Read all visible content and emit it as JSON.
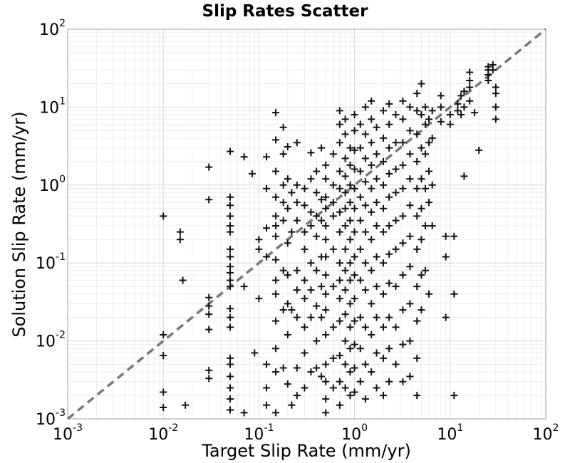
{
  "chart_data": {
    "type": "scatter",
    "title": "Slip Rates Scatter",
    "xlabel": "Target Slip Rate (mm/yr)",
    "ylabel": "Solution Slip Rate (mm/yr)",
    "xscale": "log",
    "yscale": "log",
    "xlim": [
      0.001,
      100
    ],
    "ylim": [
      0.001,
      100
    ],
    "grid": true,
    "marker": "plus",
    "marker_color": "#111111",
    "reference_line": {
      "type": "y=x",
      "style": "dashed",
      "color": "#777777"
    },
    "tick_labels": {
      "base": "10",
      "exponents": [
        "-3",
        "-2",
        "-1",
        "0",
        "1",
        "2"
      ]
    },
    "points": [
      [
        0.01,
        0.4
      ],
      [
        0.01,
        0.012
      ],
      [
        0.01,
        0.0065
      ],
      [
        0.01,
        0.0022
      ],
      [
        0.01,
        0.0014
      ],
      [
        0.015,
        0.25
      ],
      [
        0.015,
        0.2
      ],
      [
        0.016,
        0.06
      ],
      [
        0.017,
        0.0015
      ],
      [
        0.03,
        1.7
      ],
      [
        0.03,
        0.65
      ],
      [
        0.03,
        0.036
      ],
      [
        0.03,
        0.028
      ],
      [
        0.03,
        0.022
      ],
      [
        0.03,
        0.014
      ],
      [
        0.03,
        0.0042
      ],
      [
        0.03,
        0.0033
      ],
      [
        0.05,
        2.7
      ],
      [
        0.05,
        0.7
      ],
      [
        0.05,
        0.55
      ],
      [
        0.05,
        0.4
      ],
      [
        0.05,
        0.3
      ],
      [
        0.05,
        0.25
      ],
      [
        0.05,
        0.15
      ],
      [
        0.05,
        0.12
      ],
      [
        0.05,
        0.09
      ],
      [
        0.05,
        0.075
      ],
      [
        0.05,
        0.06
      ],
      [
        0.05,
        0.05
      ],
      [
        0.05,
        0.026
      ],
      [
        0.05,
        0.02
      ],
      [
        0.05,
        0.015
      ],
      [
        0.05,
        0.006
      ],
      [
        0.05,
        0.005
      ],
      [
        0.05,
        0.0035
      ],
      [
        0.05,
        0.0025
      ],
      [
        0.05,
        0.0018
      ],
      [
        0.05,
        0.0013
      ],
      [
        0.07,
        2.3
      ],
      [
        0.07,
        0.05
      ],
      [
        0.07,
        0.0012
      ],
      [
        0.085,
        1.4
      ],
      [
        0.09,
        0.007
      ],
      [
        0.1,
        0.2
      ],
      [
        0.1,
        0.15
      ],
      [
        0.1,
        0.035
      ],
      [
        0.12,
        2.3
      ],
      [
        0.12,
        0.9
      ],
      [
        0.12,
        0.28
      ],
      [
        0.12,
        0.12
      ],
      [
        0.12,
        0.005
      ],
      [
        0.12,
        0.0025
      ],
      [
        0.12,
        0.0015
      ],
      [
        0.15,
        8.5
      ],
      [
        0.15,
        3.8
      ],
      [
        0.15,
        1.5
      ],
      [
        0.15,
        0.7
      ],
      [
        0.15,
        0.4
      ],
      [
        0.15,
        0.3
      ],
      [
        0.15,
        0.22
      ],
      [
        0.15,
        0.11
      ],
      [
        0.15,
        0.06
      ],
      [
        0.15,
        0.04
      ],
      [
        0.15,
        0.018
      ],
      [
        0.15,
        0.008
      ],
      [
        0.15,
        0.004
      ],
      [
        0.15,
        0.0012
      ],
      [
        0.18,
        5.5
      ],
      [
        0.18,
        2.5
      ],
      [
        0.18,
        1.0
      ],
      [
        0.18,
        0.6
      ],
      [
        0.18,
        0.35
      ],
      [
        0.18,
        0.08
      ],
      [
        0.18,
        0.025
      ],
      [
        0.18,
        0.0045
      ],
      [
        0.2,
        3.1
      ],
      [
        0.2,
        1.2
      ],
      [
        0.2,
        0.5
      ],
      [
        0.2,
        0.18
      ],
      [
        0.2,
        0.07
      ],
      [
        0.2,
        0.03
      ],
      [
        0.2,
        0.012
      ],
      [
        0.2,
        0.0028
      ],
      [
        0.22,
        0.8
      ],
      [
        0.22,
        0.25
      ],
      [
        0.22,
        0.025
      ],
      [
        0.22,
        0.0015
      ],
      [
        0.25,
        3.5
      ],
      [
        0.25,
        1.0
      ],
      [
        0.25,
        0.6
      ],
      [
        0.25,
        0.35
      ],
      [
        0.25,
        0.08
      ],
      [
        0.25,
        0.045
      ],
      [
        0.25,
        0.02
      ],
      [
        0.25,
        0.0045
      ],
      [
        0.25,
        0.002
      ],
      [
        0.3,
        0.9
      ],
      [
        0.3,
        0.55
      ],
      [
        0.3,
        0.25
      ],
      [
        0.3,
        0.15
      ],
      [
        0.3,
        0.06
      ],
      [
        0.3,
        0.035
      ],
      [
        0.3,
        0.015
      ],
      [
        0.3,
        0.007
      ],
      [
        0.3,
        0.0025
      ],
      [
        0.35,
        2.6
      ],
      [
        0.35,
        1.2
      ],
      [
        0.35,
        0.45
      ],
      [
        0.35,
        0.3
      ],
      [
        0.35,
        0.1
      ],
      [
        0.35,
        0.045
      ],
      [
        0.35,
        0.02
      ],
      [
        0.35,
        0.004
      ],
      [
        0.4,
        1.5
      ],
      [
        0.4,
        0.8
      ],
      [
        0.4,
        0.4
      ],
      [
        0.4,
        0.22
      ],
      [
        0.4,
        0.08
      ],
      [
        0.4,
        0.028
      ],
      [
        0.4,
        0.01
      ],
      [
        0.4,
        0.0045
      ],
      [
        0.45,
        3.0
      ],
      [
        0.45,
        0.65
      ],
      [
        0.45,
        0.35
      ],
      [
        0.45,
        0.12
      ],
      [
        0.45,
        0.05
      ],
      [
        0.45,
        0.02
      ],
      [
        0.45,
        0.0035
      ],
      [
        0.5,
        1.8
      ],
      [
        0.5,
        1.2
      ],
      [
        0.5,
        0.7
      ],
      [
        0.5,
        0.5
      ],
      [
        0.5,
        0.3
      ],
      [
        0.5,
        0.2
      ],
      [
        0.5,
        0.12
      ],
      [
        0.5,
        0.07
      ],
      [
        0.5,
        0.04
      ],
      [
        0.5,
        0.025
      ],
      [
        0.5,
        0.012
      ],
      [
        0.5,
        0.005
      ],
      [
        0.5,
        0.003
      ],
      [
        0.5,
        0.0018
      ],
      [
        0.5,
        0.0012
      ],
      [
        0.6,
        2.5
      ],
      [
        0.6,
        1.0
      ],
      [
        0.6,
        0.6
      ],
      [
        0.6,
        0.4
      ],
      [
        0.6,
        0.15
      ],
      [
        0.6,
        0.05
      ],
      [
        0.6,
        0.015
      ],
      [
        0.6,
        0.006
      ],
      [
        0.6,
        0.0025
      ],
      [
        0.7,
        9.0
      ],
      [
        0.7,
        6.0
      ],
      [
        0.7,
        3.5
      ],
      [
        0.7,
        1.5
      ],
      [
        0.7,
        0.9
      ],
      [
        0.7,
        0.45
      ],
      [
        0.7,
        0.25
      ],
      [
        0.7,
        0.1
      ],
      [
        0.7,
        0.06
      ],
      [
        0.7,
        0.035
      ],
      [
        0.7,
        0.018
      ],
      [
        0.7,
        0.0065
      ],
      [
        0.7,
        0.003
      ],
      [
        0.7,
        0.0015
      ],
      [
        0.8,
        7.0
      ],
      [
        0.8,
        4.5
      ],
      [
        0.8,
        2.2
      ],
      [
        0.8,
        1.3
      ],
      [
        0.8,
        0.8
      ],
      [
        0.8,
        0.5
      ],
      [
        0.8,
        0.3
      ],
      [
        0.8,
        0.15
      ],
      [
        0.8,
        0.08
      ],
      [
        0.8,
        0.045
      ],
      [
        0.8,
        0.022
      ],
      [
        0.8,
        0.01
      ],
      [
        0.8,
        0.005
      ],
      [
        0.8,
        0.0025
      ],
      [
        0.9,
        3.0
      ],
      [
        0.9,
        1.8
      ],
      [
        0.9,
        1.0
      ],
      [
        0.9,
        0.6
      ],
      [
        0.9,
        0.35
      ],
      [
        0.9,
        0.2
      ],
      [
        0.9,
        0.1
      ],
      [
        0.9,
        0.06
      ],
      [
        0.9,
        0.03
      ],
      [
        0.9,
        0.015
      ],
      [
        0.9,
        0.008
      ],
      [
        0.9,
        0.004
      ],
      [
        0.9,
        0.002
      ],
      [
        1.0,
        8.0
      ],
      [
        1.0,
        5.0
      ],
      [
        1.0,
        2.8
      ],
      [
        1.0,
        1.6
      ],
      [
        1.0,
        0.9
      ],
      [
        1.0,
        0.5
      ],
      [
        1.0,
        0.25
      ],
      [
        1.0,
        0.12
      ],
      [
        1.0,
        0.07
      ],
      [
        1.0,
        0.035
      ],
      [
        1.0,
        0.018
      ],
      [
        1.0,
        0.009
      ],
      [
        1.0,
        0.0045
      ],
      [
        1.0,
        0.0022
      ],
      [
        1.15,
        6.0
      ],
      [
        1.15,
        3.0
      ],
      [
        1.15,
        1.5
      ],
      [
        1.15,
        0.7
      ],
      [
        1.15,
        0.35
      ],
      [
        1.15,
        0.15
      ],
      [
        1.15,
        0.06
      ],
      [
        1.15,
        0.02
      ],
      [
        1.15,
        0.008
      ],
      [
        1.15,
        0.003
      ],
      [
        1.3,
        10.0
      ],
      [
        1.3,
        4.5
      ],
      [
        1.3,
        2.2
      ],
      [
        1.3,
        1.1
      ],
      [
        1.3,
        0.55
      ],
      [
        1.3,
        0.25
      ],
      [
        1.3,
        0.1
      ],
      [
        1.3,
        0.045
      ],
      [
        1.3,
        0.015
      ],
      [
        1.3,
        0.005
      ],
      [
        1.3,
        0.0018
      ],
      [
        1.5,
        12.0
      ],
      [
        1.5,
        7.0
      ],
      [
        1.5,
        3.5
      ],
      [
        1.5,
        1.8
      ],
      [
        1.5,
        0.9
      ],
      [
        1.5,
        0.45
      ],
      [
        1.5,
        0.2
      ],
      [
        1.5,
        0.08
      ],
      [
        1.5,
        0.03
      ],
      [
        1.5,
        0.012
      ],
      [
        1.5,
        0.004
      ],
      [
        1.7,
        5.5
      ],
      [
        1.7,
        2.5
      ],
      [
        1.7,
        1.2
      ],
      [
        1.7,
        0.6
      ],
      [
        1.7,
        0.3
      ],
      [
        1.7,
        0.12
      ],
      [
        1.7,
        0.05
      ],
      [
        1.7,
        0.02
      ],
      [
        1.7,
        0.007
      ],
      [
        1.7,
        0.0025
      ],
      [
        2.0,
        9.0
      ],
      [
        2.0,
        4.0
      ],
      [
        2.0,
        2.0
      ],
      [
        2.0,
        1.0
      ],
      [
        2.0,
        0.5
      ],
      [
        2.0,
        0.25
      ],
      [
        2.0,
        0.1
      ],
      [
        2.0,
        0.04
      ],
      [
        2.0,
        0.015
      ],
      [
        2.0,
        0.006
      ],
      [
        2.0,
        0.002
      ],
      [
        2.3,
        11.0
      ],
      [
        2.3,
        6.0
      ],
      [
        2.3,
        3.0
      ],
      [
        2.3,
        1.4
      ],
      [
        2.3,
        0.7
      ],
      [
        2.3,
        0.3
      ],
      [
        2.3,
        0.13
      ],
      [
        2.3,
        0.055
      ],
      [
        2.3,
        0.02
      ],
      [
        2.3,
        0.008
      ],
      [
        2.3,
        0.003
      ],
      [
        2.7,
        8.0
      ],
      [
        2.7,
        3.5
      ],
      [
        2.7,
        1.6
      ],
      [
        2.7,
        0.8
      ],
      [
        2.7,
        0.35
      ],
      [
        2.7,
        0.15
      ],
      [
        2.7,
        0.05
      ],
      [
        2.7,
        0.015
      ],
      [
        2.7,
        0.005
      ],
      [
        3.2,
        12.0
      ],
      [
        3.2,
        7.0
      ],
      [
        3.2,
        3.5
      ],
      [
        3.2,
        1.8
      ],
      [
        3.2,
        0.9
      ],
      [
        3.2,
        0.4
      ],
      [
        3.2,
        0.18
      ],
      [
        3.2,
        0.07
      ],
      [
        3.2,
        0.025
      ],
      [
        3.2,
        0.009
      ],
      [
        3.2,
        0.003
      ],
      [
        3.8,
        10.0
      ],
      [
        3.8,
        5.0
      ],
      [
        3.8,
        2.5
      ],
      [
        3.8,
        1.2
      ],
      [
        3.8,
        0.55
      ],
      [
        3.8,
        0.22
      ],
      [
        3.8,
        0.09
      ],
      [
        3.8,
        0.03
      ],
      [
        3.8,
        0.01
      ],
      [
        3.8,
        0.0035
      ],
      [
        4.5,
        15.0
      ],
      [
        4.5,
        9.0
      ],
      [
        4.5,
        4.5
      ],
      [
        4.5,
        2.0
      ],
      [
        4.5,
        0.9
      ],
      [
        4.5,
        0.4
      ],
      [
        4.5,
        0.15
      ],
      [
        4.5,
        0.05
      ],
      [
        4.5,
        0.018
      ],
      [
        4.5,
        0.006
      ],
      [
        4.5,
        0.002
      ],
      [
        5.0,
        20.0
      ],
      [
        5.0,
        8.0
      ],
      [
        5.0,
        3.0
      ],
      [
        5.0,
        1.2
      ],
      [
        5.0,
        0.5
      ],
      [
        5.0,
        0.2
      ],
      [
        5.0,
        0.07
      ],
      [
        5.0,
        0.025
      ],
      [
        5.5,
        10.0
      ],
      [
        5.5,
        6.0
      ],
      [
        5.5,
        2.5
      ],
      [
        5.5,
        0.9
      ],
      [
        5.5,
        0.3
      ],
      [
        5.5,
        0.08
      ],
      [
        6.0,
        7.0
      ],
      [
        6.0,
        3.5
      ],
      [
        6.0,
        1.5
      ],
      [
        6.0,
        0.6
      ],
      [
        6.0,
        0.04
      ],
      [
        6.5,
        9.0
      ],
      [
        6.5,
        4.0
      ],
      [
        6.5,
        1.0
      ],
      [
        6.5,
        0.3
      ],
      [
        8.0,
        14.0
      ],
      [
        8.0,
        10.0
      ],
      [
        8.0,
        6.5
      ],
      [
        9.0,
        0.22
      ],
      [
        9.0,
        0.12
      ],
      [
        9.0,
        0.02
      ],
      [
        10.0,
        8.0
      ],
      [
        10.0,
        6.0
      ],
      [
        11.0,
        0.22
      ],
      [
        11.0,
        0.04
      ],
      [
        11.0,
        0.002
      ],
      [
        12.0,
        11.0
      ],
      [
        12.0,
        9.0
      ],
      [
        13.0,
        14.0
      ],
      [
        13.0,
        8.0
      ],
      [
        14.0,
        1.3
      ],
      [
        14.0,
        16.0
      ],
      [
        14.0,
        10.0
      ],
      [
        16.0,
        28.0
      ],
      [
        16.0,
        22.0
      ],
      [
        16.0,
        18.0
      ],
      [
        16.0,
        12.0
      ],
      [
        18.0,
        8.5
      ],
      [
        20.0,
        2.8
      ],
      [
        25.0,
        33.0
      ],
      [
        25.0,
        30.0
      ],
      [
        25.0,
        26.0
      ],
      [
        25.0,
        22.0
      ],
      [
        28.0,
        35.0
      ],
      [
        28.0,
        30.0
      ],
      [
        30.0,
        18.0
      ],
      [
        30.0,
        15.0
      ],
      [
        30.0,
        10.0
      ],
      [
        30.0,
        7.0
      ]
    ]
  }
}
